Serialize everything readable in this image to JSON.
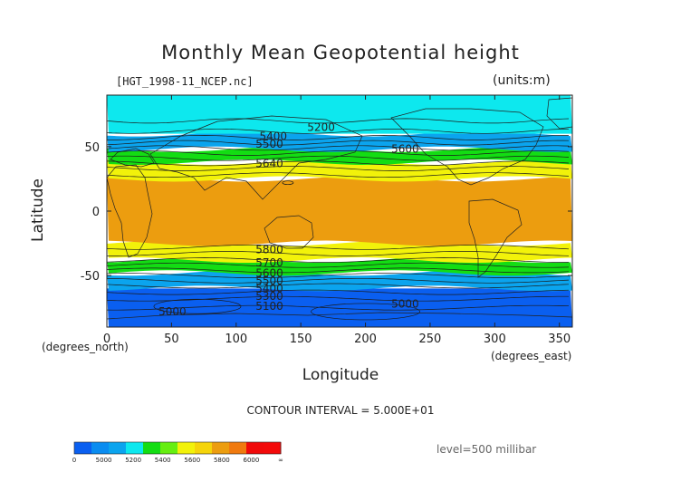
{
  "chart_data": {
    "type": "filled-contour-map",
    "title": "Monthly Mean Geopotential height",
    "file_label": "[HGT_1998-11_NCEP.nc]",
    "units_label": "(units:m)",
    "xlabel": "Longitude",
    "ylabel": "Latitude",
    "x_unit_label": "(degrees_north)",
    "y_unit_label": "(degrees_east)",
    "xlim": [
      0,
      360
    ],
    "ylim": [
      -90,
      90
    ],
    "x_ticks": [
      "0",
      "50",
      "100",
      "150",
      "200",
      "250",
      "300",
      "350"
    ],
    "y_ticks": [
      "50",
      "0",
      "-50"
    ],
    "contour_interval": "CONTOUR INTERVAL = 5.000E+01",
    "level": "level=500 millibar",
    "bands": [
      {
        "lat": [
          -90,
          -60
        ],
        "level": 5000,
        "color": "#0a5ff0"
      },
      {
        "lat": [
          -60,
          -48
        ],
        "level": 5300,
        "color": "#0ba4ee"
      },
      {
        "lat": [
          -48,
          -38
        ],
        "level": 5500,
        "color": "#13dd13"
      },
      {
        "lat": [
          -38,
          -25
        ],
        "level": 5700,
        "color": "#f2f20a"
      },
      {
        "lat": [
          -25,
          25
        ],
        "level": 5850,
        "color": "#ec9d0f"
      },
      {
        "lat": [
          25,
          38
        ],
        "level": 5700,
        "color": "#f2f20a"
      },
      {
        "lat": [
          38,
          48
        ],
        "level": 5500,
        "color": "#13dd13"
      },
      {
        "lat": [
          48,
          60
        ],
        "level": 5300,
        "color": "#0ba4ee"
      },
      {
        "lat": [
          60,
          90
        ],
        "level": 5200,
        "color": "#0de8ee"
      }
    ],
    "contour_labels": [
      {
        "text": "5200",
        "lon": 155,
        "lat": 65
      },
      {
        "text": "5600",
        "lon": 220,
        "lat": 48
      },
      {
        "text": "5400",
        "lon": 118,
        "lat": 58
      },
      {
        "text": "5500",
        "lon": 115,
        "lat": 52
      },
      {
        "text": "5640",
        "lon": 115,
        "lat": 37
      },
      {
        "text": "5800",
        "lon": 115,
        "lat": -30
      },
      {
        "text": "5700",
        "lon": 115,
        "lat": -40
      },
      {
        "text": "5600",
        "lon": 115,
        "lat": -48
      },
      {
        "text": "5500",
        "lon": 115,
        "lat": -54
      },
      {
        "text": "5400",
        "lon": 115,
        "lat": -60
      },
      {
        "text": "5300",
        "lon": 115,
        "lat": -66
      },
      {
        "text": "5100",
        "lon": 115,
        "lat": -74
      },
      {
        "text": "5000",
        "lon": 40,
        "lat": -78
      },
      {
        "text": "5000",
        "lon": 220,
        "lat": -72
      }
    ],
    "colorbar": {
      "labels": [
        "0",
        "5000",
        "5200",
        "5400",
        "5600",
        "5800",
        "6000",
        "∞"
      ],
      "colors": [
        "#0a5ff0",
        "#0a8cf0",
        "#0ba4ee",
        "#0de8ee",
        "#13dd13",
        "#66ee11",
        "#f2f20a",
        "#f5d40a",
        "#ec9d0f",
        "#f07a0f",
        "#f00a0a",
        "#f30a0a"
      ]
    }
  }
}
